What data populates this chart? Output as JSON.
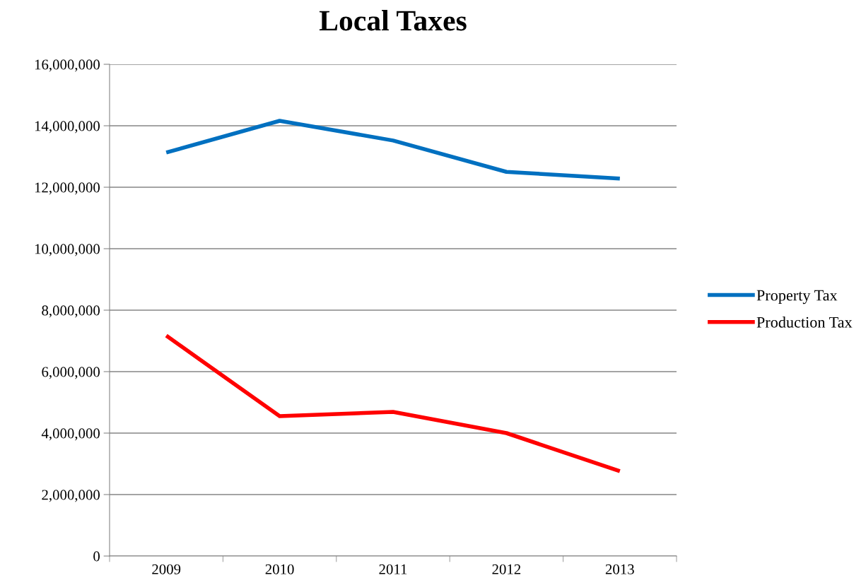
{
  "chart_data": {
    "type": "line",
    "title": "Local Taxes",
    "categories": [
      "2009",
      "2010",
      "2011",
      "2012",
      "2013"
    ],
    "series": [
      {
        "name": "Property Tax",
        "color": "#0070c0",
        "values": [
          13130000,
          14160000,
          13520000,
          12500000,
          12280000
        ]
      },
      {
        "name": "Production Tax",
        "color": "#ff0000",
        "values": [
          7170000,
          4550000,
          4690000,
          4000000,
          2760000
        ]
      }
    ],
    "ylim": [
      0,
      16000000
    ],
    "yticks": [
      {
        "value": 0,
        "label": "0"
      },
      {
        "value": 2000000,
        "label": "2,000,000"
      },
      {
        "value": 4000000,
        "label": "4,000,000"
      },
      {
        "value": 6000000,
        "label": "6,000,000"
      },
      {
        "value": 8000000,
        "label": "8,000,000"
      },
      {
        "value": 10000000,
        "label": "10,000,000"
      },
      {
        "value": 12000000,
        "label": "12,000,000"
      },
      {
        "value": 14000000,
        "label": "14,000,000"
      },
      {
        "value": 16000000,
        "label": "16,000,000"
      }
    ],
    "grid": "y",
    "legend": "right",
    "marker": "none",
    "line_style": "solid"
  }
}
